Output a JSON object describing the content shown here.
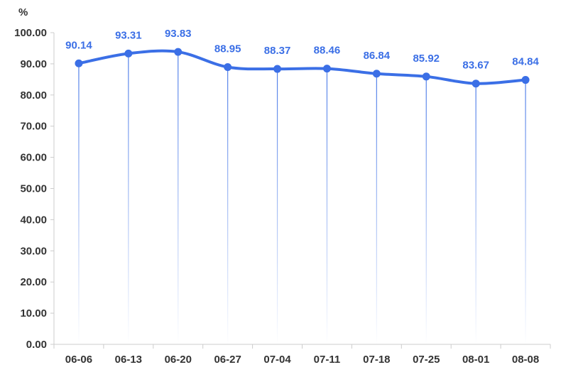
{
  "chart_data": {
    "type": "line",
    "unit": "%",
    "categories": [
      "06-06",
      "06-13",
      "06-20",
      "06-27",
      "07-04",
      "07-11",
      "07-18",
      "07-25",
      "08-01",
      "08-08"
    ],
    "series": [
      {
        "values": [
          90.14,
          93.31,
          93.83,
          88.95,
          88.37,
          88.46,
          86.84,
          85.92,
          83.67,
          84.84
        ]
      }
    ],
    "data_labels": [
      "90.14",
      "93.31",
      "93.83",
      "88.95",
      "88.37",
      "88.46",
      "86.84",
      "85.92",
      "83.67",
      "84.84"
    ],
    "y_ticks": [
      "0.00",
      "10.00",
      "20.00",
      "30.00",
      "40.00",
      "50.00",
      "60.00",
      "70.00",
      "80.00",
      "90.00",
      "100.00"
    ],
    "ylim": [
      0,
      100
    ],
    "smooth": true,
    "drop_lines": true,
    "grid": false,
    "legend": "none",
    "colors": {
      "line": "#3b6fe6",
      "label": "#3b6fe6",
      "axis": "#cccccc",
      "text": "#333333"
    }
  }
}
